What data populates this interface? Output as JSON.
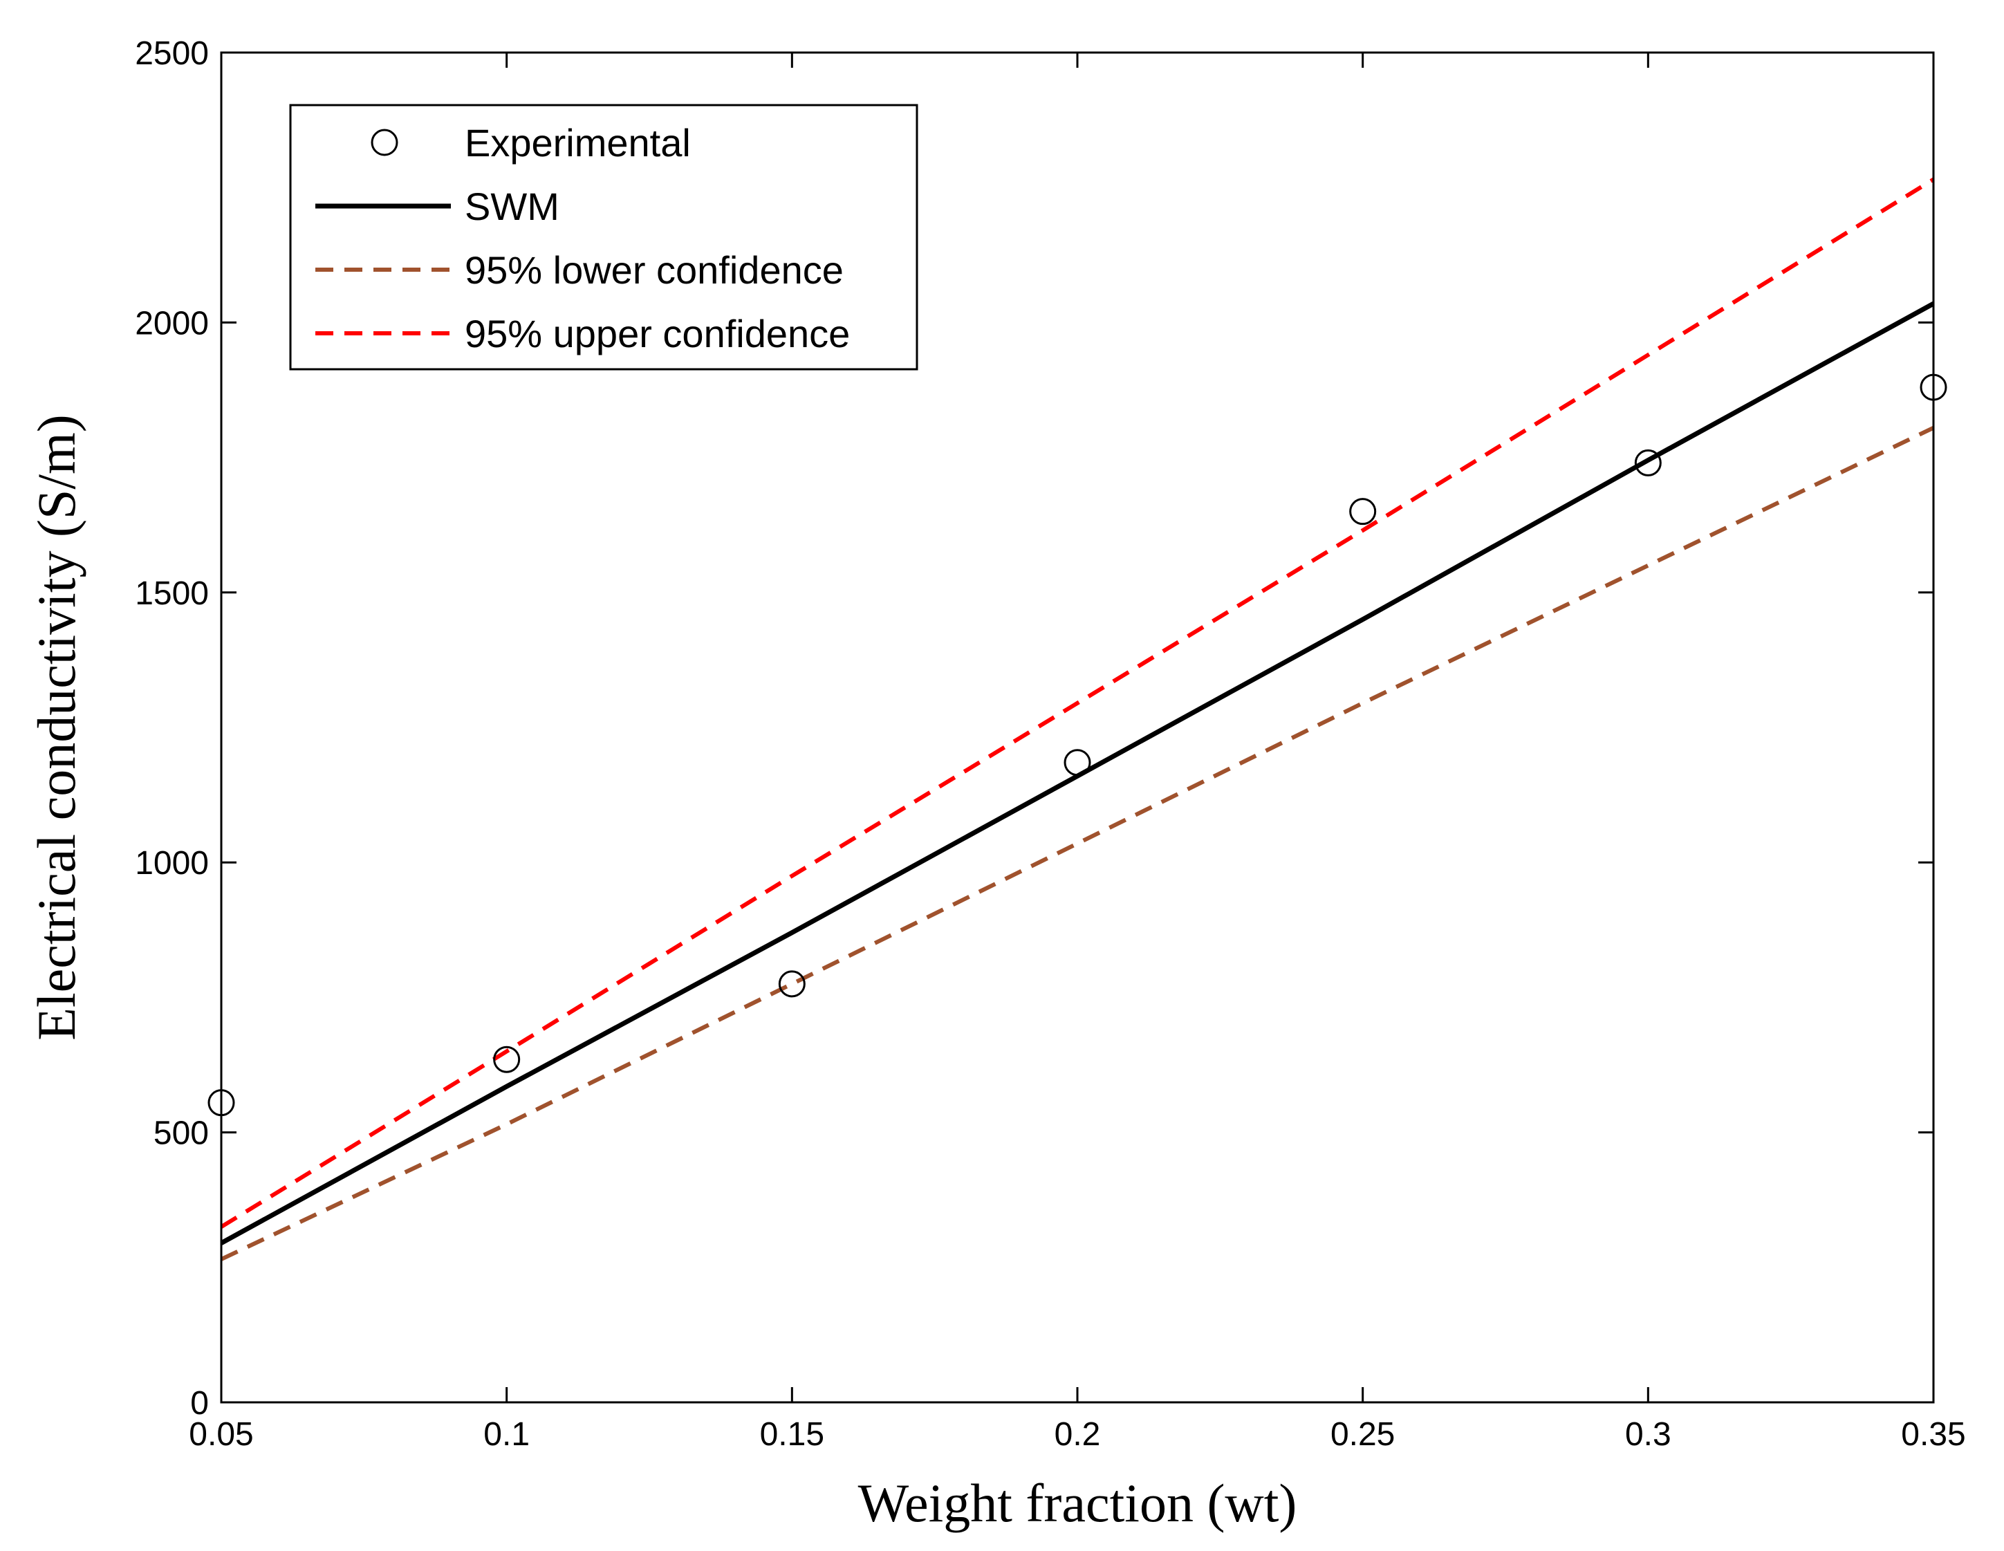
{
  "chart_data": {
    "type": "line",
    "title": "",
    "xlabel": "Weight fraction (wt)",
    "ylabel": "Electrical conductivity (S/m)",
    "xlim": [
      0.05,
      0.35
    ],
    "ylim": [
      0,
      2500
    ],
    "xticks": [
      0.05,
      0.1,
      0.15,
      0.2,
      0.25,
      0.3,
      0.35
    ],
    "xtick_labels": [
      "0.05",
      "0.1",
      "0.15",
      "0.2",
      "0.25",
      "0.3",
      "0.35"
    ],
    "yticks": [
      0,
      500,
      1000,
      1500,
      2000,
      2500
    ],
    "ytick_labels": [
      "0",
      "500",
      "1000",
      "1500",
      "2000",
      "2500"
    ],
    "grid": false,
    "legend_position": "top-left",
    "series": [
      {
        "name": "Experimental",
        "style": "marker-circle",
        "color": "#000000",
        "x": [
          0.05,
          0.1,
          0.15,
          0.2,
          0.25,
          0.3,
          0.35
        ],
        "y": [
          555,
          635,
          775,
          1185,
          1650,
          1740,
          1880
        ]
      },
      {
        "name": "SWM",
        "style": "solid",
        "color": "#000000",
        "x": [
          0.05,
          0.1,
          0.15,
          0.2,
          0.25,
          0.3,
          0.35
        ],
        "y": [
          295,
          585,
          870,
          1160,
          1450,
          1745,
          2035
        ]
      },
      {
        "name": "95% lower confidence",
        "style": "dashed",
        "color": "#a0522d",
        "x": [
          0.05,
          0.1,
          0.15,
          0.2,
          0.25,
          0.3,
          0.35
        ],
        "y": [
          265,
          515,
          775,
          1035,
          1295,
          1550,
          1805
        ]
      },
      {
        "name": "95% upper confidence",
        "style": "dashed",
        "color": "#ff0000",
        "x": [
          0.05,
          0.1,
          0.15,
          0.2,
          0.25,
          0.3,
          0.35
        ],
        "y": [
          325,
          650,
          975,
          1295,
          1615,
          1940,
          2265
        ]
      }
    ]
  }
}
